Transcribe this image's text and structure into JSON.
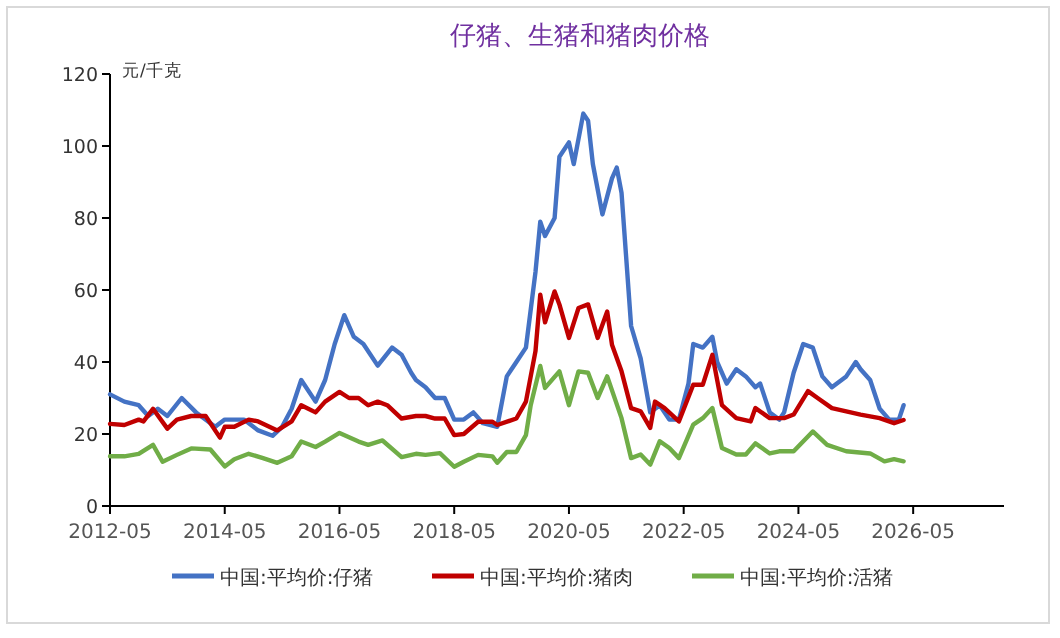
{
  "chart_data": {
    "type": "line",
    "title": "仔猪、生猪和猪肉价格",
    "ylabel": "元/千克",
    "xlim": [
      "2012-05",
      "2027-12"
    ],
    "xticks": [
      "2012-05",
      "2014-05",
      "2016-05",
      "2018-05",
      "2020-05",
      "2022-05",
      "2024-05",
      "2026-05"
    ],
    "ylim": [
      0,
      120
    ],
    "yticks": [
      0,
      20,
      40,
      60,
      80,
      100,
      120
    ],
    "grid": false,
    "legend": "bottom",
    "marker": "none",
    "line_style": "solid",
    "series": [
      {
        "name": "中国:平均价:仔猪",
        "color": "#4472c4",
        "x": [
          "2012-05",
          "2012-08",
          "2012-11",
          "2013-01",
          "2013-03",
          "2013-05",
          "2013-08",
          "2013-11",
          "2014-03",
          "2014-05",
          "2014-09",
          "2014-12",
          "2015-03",
          "2015-05",
          "2015-07",
          "2015-09",
          "2015-12",
          "2016-02",
          "2016-04",
          "2016-06",
          "2016-08",
          "2016-10",
          "2017-01",
          "2017-04",
          "2017-06",
          "2017-08",
          "2017-09",
          "2017-11",
          "2018-01",
          "2018-03",
          "2018-05",
          "2018-07",
          "2018-09",
          "2018-11",
          "2019-02",
          "2019-04",
          "2019-06",
          "2019-08",
          "2019-10",
          "2019-11",
          "2019-12",
          "2020-02",
          "2020-03",
          "2020-05",
          "2020-06",
          "2020-07",
          "2020-08",
          "2020-09",
          "2020-10",
          "2020-12",
          "2021-02",
          "2021-03",
          "2021-04",
          "2021-06",
          "2021-08",
          "2021-10",
          "2021-12",
          "2022-02",
          "2022-04",
          "2022-06",
          "2022-07",
          "2022-09",
          "2022-11",
          "2022-12",
          "2023-02",
          "2023-04",
          "2023-06",
          "2023-08",
          "2023-09",
          "2023-11",
          "2024-01",
          "2024-02",
          "2024-04",
          "2024-06",
          "2024-08",
          "2024-10",
          "2024-12",
          "2025-03",
          "2025-05",
          "2025-06",
          "2025-08",
          "2025-10",
          "2025-12",
          "2026-02",
          "2026-03"
        ],
        "values": [
          31,
          29,
          28,
          25,
          27,
          25,
          30,
          26,
          22,
          24,
          24,
          21,
          19.5,
          22,
          27,
          35,
          29,
          35,
          45,
          53,
          47,
          45,
          39,
          44,
          42,
          37,
          35,
          33,
          30,
          30,
          24,
          24,
          26,
          23,
          22,
          36,
          40,
          44,
          65,
          79,
          75,
          80,
          97,
          101,
          95,
          102,
          109,
          107,
          95,
          81,
          91,
          94,
          87,
          50,
          41,
          26,
          28,
          24,
          24,
          34,
          45,
          44,
          47,
          40,
          34,
          38,
          36,
          33,
          34,
          26,
          24,
          26,
          37,
          45,
          44,
          36,
          33,
          36,
          40,
          38,
          35,
          27,
          24,
          24,
          28
        ]
      },
      {
        "name": "中国:平均价:猪肉",
        "color": "#c00000",
        "x": [
          "2012-05",
          "2012-08",
          "2012-11",
          "2012-12",
          "2013-02",
          "2013-05",
          "2013-07",
          "2013-10",
          "2014-01",
          "2014-04",
          "2014-05",
          "2014-07",
          "2014-10",
          "2014-12",
          "2015-04",
          "2015-07",
          "2015-09",
          "2015-12",
          "2016-02",
          "2016-05",
          "2016-07",
          "2016-09",
          "2016-11",
          "2017-01",
          "2017-03",
          "2017-06",
          "2017-09",
          "2017-11",
          "2018-01",
          "2018-03",
          "2018-05",
          "2018-07",
          "2018-10",
          "2019-01",
          "2019-02",
          "2019-06",
          "2019-08",
          "2019-10",
          "2019-11",
          "2019-12",
          "2020-02",
          "2020-03",
          "2020-05",
          "2020-07",
          "2020-09",
          "2020-11",
          "2021-01",
          "2021-02",
          "2021-04",
          "2021-06",
          "2021-08",
          "2021-10",
          "2021-11",
          "2022-01",
          "2022-04",
          "2022-07",
          "2022-09",
          "2022-11",
          "2023-01",
          "2023-04",
          "2023-07",
          "2023-08",
          "2023-11",
          "2024-02",
          "2024-04",
          "2024-07",
          "2024-09",
          "2024-12",
          "2025-06",
          "2025-10",
          "2026-01",
          "2026-03"
        ],
        "values": [
          22.8,
          22.5,
          24,
          23.5,
          27,
          21.5,
          24,
          25,
          25,
          19,
          22,
          22,
          24,
          23.5,
          21,
          23.5,
          28,
          26,
          29,
          31.7,
          30,
          30,
          28,
          29,
          28,
          24.3,
          25,
          25,
          24.3,
          24.3,
          19.7,
          20,
          23.4,
          23.4,
          22.5,
          24.3,
          29,
          43,
          58.7,
          51,
          59.6,
          56,
          46.7,
          55,
          56,
          46.7,
          54,
          44.8,
          37.4,
          27.2,
          26.3,
          21.7,
          29,
          27.2,
          23.5,
          33.7,
          33.7,
          42,
          28,
          24.4,
          23.5,
          27.2,
          24.4,
          24.4,
          25.4,
          31.9,
          30,
          27.2,
          25.4,
          24.4,
          23,
          23.9
        ]
      },
      {
        "name": "中国:平均价:活猪",
        "color": "#70ad47",
        "x": [
          "2012-05",
          "2012-08",
          "2012-11",
          "2013-02",
          "2013-04",
          "2013-07",
          "2013-10",
          "2014-02",
          "2014-05",
          "2014-07",
          "2014-10",
          "2015-01",
          "2015-04",
          "2015-07",
          "2015-09",
          "2015-12",
          "2016-02",
          "2016-05",
          "2016-09",
          "2016-11",
          "2017-02",
          "2017-06",
          "2017-09",
          "2017-11",
          "2018-02",
          "2018-05",
          "2018-07",
          "2018-10",
          "2019-01",
          "2019-02",
          "2019-04",
          "2019-06",
          "2019-08",
          "2019-09",
          "2019-11",
          "2019-12",
          "2020-03",
          "2020-05",
          "2020-07",
          "2020-09",
          "2020-11",
          "2021-01",
          "2021-04",
          "2021-06",
          "2021-08",
          "2021-10",
          "2021-12",
          "2022-02",
          "2022-04",
          "2022-07",
          "2022-09",
          "2022-11",
          "2023-01",
          "2023-04",
          "2023-06",
          "2023-08",
          "2023-11",
          "2024-01",
          "2024-04",
          "2024-08",
          "2024-11",
          "2025-03",
          "2025-08",
          "2025-11",
          "2026-01",
          "2026-03"
        ],
        "values": [
          13.8,
          13.8,
          14.5,
          17,
          12.3,
          14.2,
          16,
          15.7,
          11,
          13,
          14.5,
          13.3,
          12,
          13.8,
          17.9,
          16.4,
          17.9,
          20.3,
          17.9,
          17,
          18.2,
          13.6,
          14.5,
          14.2,
          14.7,
          10.9,
          12.3,
          14.2,
          13.8,
          12,
          15,
          15,
          19.7,
          28,
          38.9,
          32.8,
          37.4,
          28,
          37.4,
          37,
          30,
          36,
          24.4,
          13.3,
          14.3,
          11.5,
          18,
          16.1,
          13.3,
          22.6,
          24.4,
          27.2,
          16.1,
          14.3,
          14.3,
          17.4,
          14.6,
          15.2,
          15.2,
          20.7,
          17,
          15.2,
          14.6,
          12.4,
          13,
          12.4
        ]
      }
    ]
  }
}
